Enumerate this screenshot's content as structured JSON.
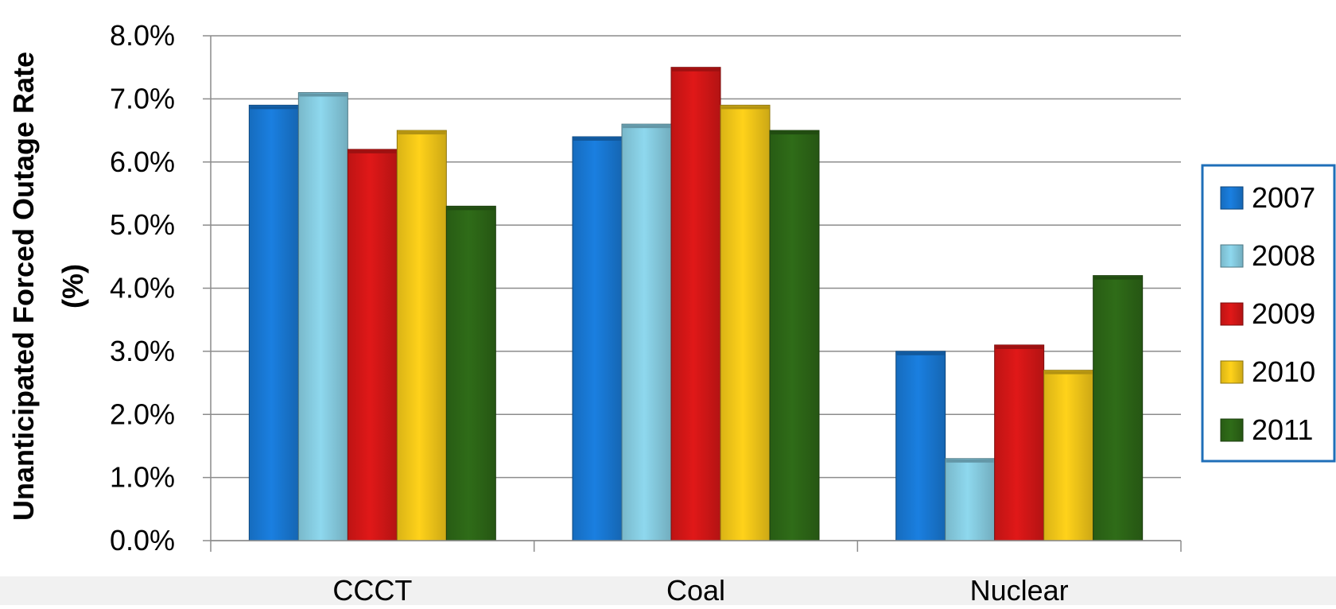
{
  "chart_data": {
    "type": "bar",
    "title": "",
    "xlabel": "",
    "ylabel": "Unanticipated Forced Outage Rate",
    "ylabel_unit": "(%)",
    "categories": [
      "CCCT",
      "Coal",
      "Nuclear"
    ],
    "ylim": [
      0,
      8
    ],
    "yticks": [
      "0.0%",
      "1.0%",
      "2.0%",
      "3.0%",
      "4.0%",
      "5.0%",
      "6.0%",
      "7.0%",
      "8.0%"
    ],
    "grid": true,
    "legend_position": "right",
    "series": [
      {
        "name": "2007",
        "color": "#1a7fe0",
        "values": [
          6.9,
          6.4,
          3.0
        ]
      },
      {
        "name": "2008",
        "color": "#8ed8ee",
        "values": [
          7.1,
          6.6,
          1.3
        ]
      },
      {
        "name": "2009",
        "color": "#e01818",
        "values": [
          6.2,
          7.5,
          3.1
        ]
      },
      {
        "name": "2010",
        "color": "#ffd21a",
        "values": [
          6.5,
          6.9,
          2.7
        ]
      },
      {
        "name": "2011",
        "color": "#2f6c18",
        "values": [
          5.3,
          6.5,
          4.2
        ]
      }
    ]
  }
}
